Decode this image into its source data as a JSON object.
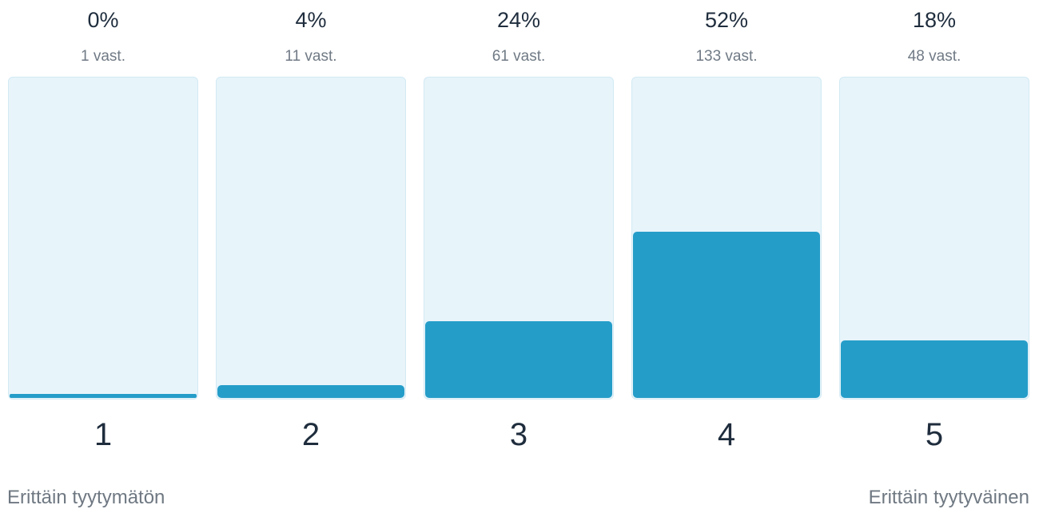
{
  "chart_data": {
    "type": "bar",
    "categories": [
      "1",
      "2",
      "3",
      "4",
      "5"
    ],
    "percentages": [
      "0%",
      "4%",
      "24%",
      "52%",
      "18%"
    ],
    "counts": [
      "1 vast.",
      "11 vast.",
      "61 vast.",
      "133 vast.",
      "48 vast."
    ],
    "values": [
      0.4,
      4,
      24,
      52,
      18
    ],
    "ylim": [
      0,
      100
    ],
    "scale_labels": {
      "low": "Erittäin tyytymätön",
      "high": "Erittäin tyytyväinen"
    },
    "colors": {
      "bar": "#259dc9",
      "track": "#e7f4fa",
      "track_border": "#d3eaf4"
    }
  }
}
